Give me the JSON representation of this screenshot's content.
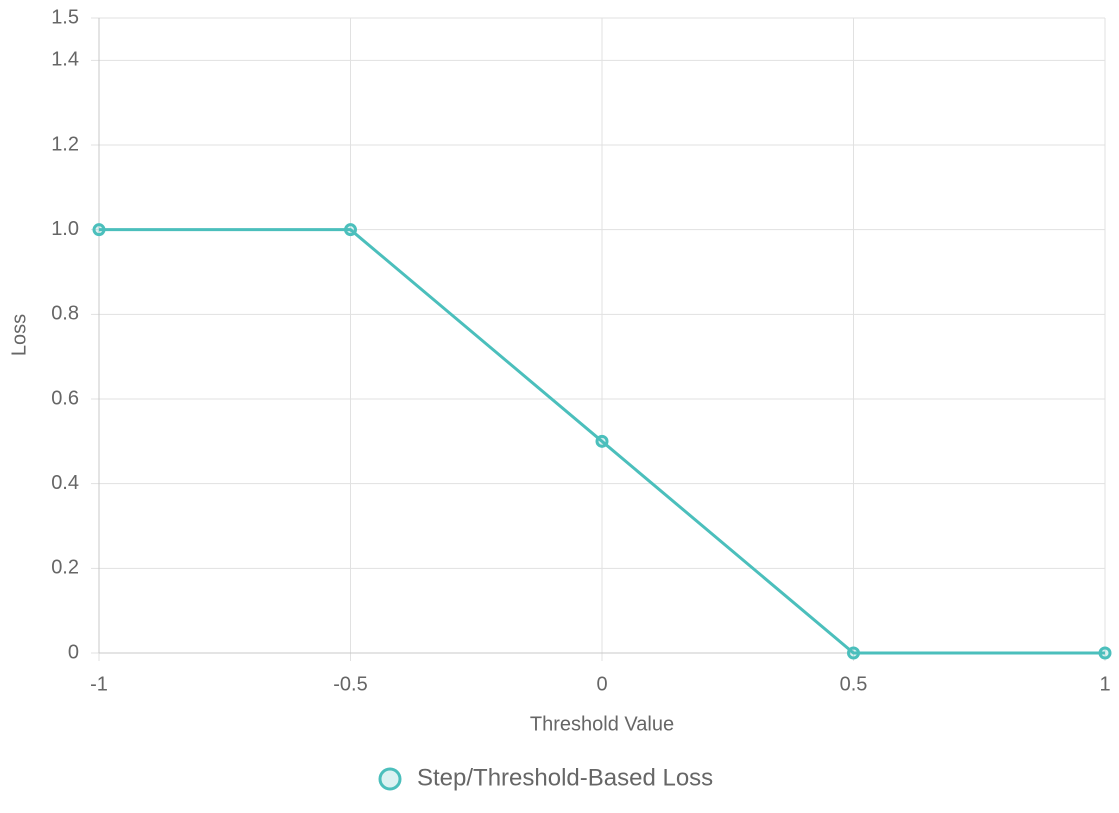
{
  "chart_data": {
    "type": "line",
    "x": [
      -1,
      -0.5,
      0,
      0.5,
      1
    ],
    "series": [
      {
        "name": "Step/Threshold-Based Loss",
        "color": "#4bbfbc",
        "values": [
          1,
          1,
          0.5,
          0,
          0
        ]
      }
    ],
    "xlabel": "Threshold Value",
    "ylabel": "Loss",
    "xlim": [
      -1,
      1
    ],
    "xticks": [
      -1,
      -0.5,
      0,
      0.5,
      1
    ],
    "ylim": [
      0,
      1.5
    ],
    "yticks": [
      0,
      0.2,
      0.4,
      0.6,
      0.8,
      {
        "value": 1,
        "label": "1.0"
      },
      1.2,
      1.4,
      1.5
    ],
    "grid": true,
    "legend": "bottom"
  }
}
